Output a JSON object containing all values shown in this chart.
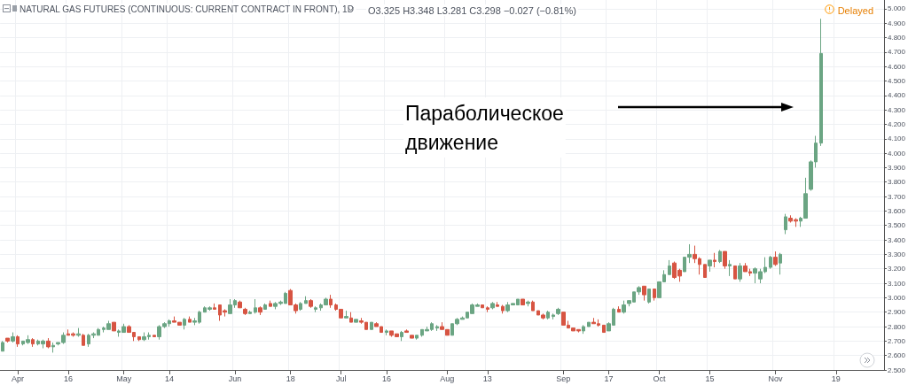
{
  "chart_data": {
    "type": "candlestick",
    "title": "NATURAL GAS FUTURES (CONTINUOUS: CURRENT CONTRACT IN FRONT), 1D",
    "annotations": [
      "O3.325 H3.348 L3.281 C3.298 −0.027 (−0.81%)",
      "Delayed",
      "Параболическое движение"
    ],
    "categories": [
      null,
      null,
      null,
      "Apr",
      null,
      null,
      null,
      null,
      null,
      null,
      null,
      null,
      null,
      "16",
      null,
      null,
      null,
      null,
      null,
      null,
      null,
      null,
      null,
      null,
      "May",
      null,
      null,
      null,
      null,
      null,
      null,
      null,
      null,
      "14",
      null,
      null,
      null,
      null,
      null,
      null,
      null,
      null,
      null,
      null,
      null,
      null,
      "Jun",
      null,
      null,
      null,
      null,
      null,
      null,
      null,
      null,
      null,
      null,
      "18",
      null,
      null,
      null,
      null,
      null,
      null,
      null,
      null,
      null,
      "Jul",
      null,
      null,
      null,
      null,
      null,
      null,
      null,
      null,
      "16",
      null,
      null,
      null,
      null,
      null,
      null,
      null,
      null,
      null,
      null,
      null,
      "Aug",
      null,
      null,
      null,
      null,
      null,
      null,
      null,
      "13",
      null,
      null,
      null,
      null,
      null,
      null,
      null,
      null,
      null,
      null,
      null,
      null,
      null,
      null,
      "Sep",
      null,
      null,
      null,
      null,
      null,
      null,
      null,
      null,
      "17",
      null,
      null,
      null,
      null,
      null,
      null,
      null,
      null,
      null,
      "Oct",
      null,
      null,
      null,
      null,
      null,
      null,
      null,
      null,
      null,
      "15",
      null,
      null,
      null,
      null,
      null,
      null,
      null,
      null,
      null,
      null,
      null,
      null,
      "Nov",
      null,
      null,
      null,
      null,
      null,
      null,
      null,
      null,
      null,
      null,
      null,
      "19",
      null,
      null,
      null,
      null,
      null,
      null,
      null,
      null,
      null
    ],
    "ohlc": [
      [
        2.63,
        2.7,
        2.63,
        2.69
      ],
      [
        2.72,
        2.72,
        2.69,
        2.7
      ],
      [
        2.7,
        2.76,
        2.69,
        2.73
      ],
      [
        2.73,
        2.74,
        2.66,
        2.68
      ],
      [
        2.68,
        2.7,
        2.67,
        2.7
      ],
      [
        2.69,
        2.74,
        2.68,
        2.71
      ],
      [
        2.71,
        2.72,
        2.66,
        2.68
      ],
      [
        2.68,
        2.71,
        2.67,
        2.7
      ],
      [
        2.68,
        2.71,
        2.65,
        2.7
      ],
      [
        2.7,
        2.72,
        2.65,
        2.66
      ],
      [
        2.66,
        2.69,
        2.62,
        2.67
      ],
      [
        2.68,
        2.69,
        2.67,
        2.69
      ],
      [
        2.69,
        2.76,
        2.68,
        2.74
      ],
      [
        2.75,
        2.78,
        2.74,
        2.74
      ],
      [
        2.75,
        2.76,
        2.73,
        2.74
      ],
      [
        2.74,
        2.79,
        2.73,
        2.75
      ],
      [
        2.74,
        2.75,
        2.67,
        2.67
      ],
      [
        2.68,
        2.75,
        2.66,
        2.74
      ],
      [
        2.74,
        2.76,
        2.72,
        2.75
      ],
      [
        2.74,
        2.79,
        2.74,
        2.78
      ],
      [
        2.78,
        2.8,
        2.76,
        2.79
      ],
      [
        2.78,
        2.84,
        2.78,
        2.82
      ],
      [
        2.83,
        2.83,
        2.77,
        2.77
      ],
      [
        2.76,
        2.78,
        2.73,
        2.77
      ],
      [
        2.76,
        2.82,
        2.76,
        2.8
      ],
      [
        2.8,
        2.81,
        2.76,
        2.76
      ],
      [
        2.76,
        2.76,
        2.7,
        2.73
      ],
      [
        2.73,
        2.73,
        2.7,
        2.71
      ],
      [
        2.71,
        2.76,
        2.7,
        2.73
      ],
      [
        2.73,
        2.76,
        2.71,
        2.74
      ],
      [
        2.74,
        2.74,
        2.73,
        2.73
      ],
      [
        2.73,
        2.81,
        2.71,
        2.8
      ],
      [
        2.8,
        2.83,
        2.79,
        2.82
      ],
      [
        2.82,
        2.85,
        2.8,
        2.84
      ],
      [
        2.84,
        2.87,
        2.83,
        2.83
      ],
      [
        2.83,
        2.83,
        2.81,
        2.81
      ],
      [
        2.81,
        2.86,
        2.78,
        2.85
      ],
      [
        2.85,
        2.87,
        2.83,
        2.83
      ],
      [
        2.83,
        2.86,
        2.81,
        2.84
      ],
      [
        2.83,
        2.91,
        2.82,
        2.9
      ],
      [
        2.9,
        2.94,
        2.9,
        2.93
      ],
      [
        2.92,
        2.94,
        2.91,
        2.93
      ],
      [
        2.93,
        2.96,
        2.92,
        2.92
      ],
      [
        2.95,
        2.95,
        2.84,
        2.88
      ],
      [
        2.91,
        2.92,
        2.87,
        2.9
      ],
      [
        2.89,
        2.99,
        2.89,
        2.95
      ],
      [
        2.95,
        2.99,
        2.93,
        2.98
      ],
      [
        2.97,
        2.98,
        2.93,
        2.93
      ],
      [
        2.92,
        2.93,
        2.88,
        2.89
      ],
      [
        2.89,
        2.91,
        2.89,
        2.9
      ],
      [
        2.9,
        2.99,
        2.89,
        2.93
      ],
      [
        2.93,
        2.94,
        2.88,
        2.9
      ],
      [
        2.92,
        2.96,
        2.92,
        2.95
      ],
      [
        2.96,
        2.98,
        2.94,
        2.94
      ],
      [
        2.94,
        2.97,
        2.92,
        2.96
      ],
      [
        2.96,
        2.98,
        2.95,
        2.97
      ],
      [
        2.96,
        3.04,
        2.96,
        3.03
      ],
      [
        3.05,
        3.06,
        2.95,
        2.95
      ],
      [
        2.95,
        2.96,
        2.89,
        2.91
      ],
      [
        2.92,
        2.97,
        2.91,
        2.96
      ],
      [
        2.96,
        3.01,
        2.96,
        2.98
      ],
      [
        2.98,
        2.99,
        2.93,
        2.94
      ],
      [
        2.92,
        2.94,
        2.9,
        2.93
      ],
      [
        2.93,
        2.96,
        2.91,
        2.95
      ],
      [
        2.95,
        3.0,
        2.95,
        2.99
      ],
      [
        2.99,
        3.02,
        2.93,
        2.95
      ],
      [
        2.95,
        2.96,
        2.91,
        2.92
      ],
      [
        2.92,
        2.92,
        2.86,
        2.86
      ],
      [
        2.86,
        2.91,
        2.86,
        2.87
      ],
      [
        2.86,
        2.9,
        2.83,
        2.83
      ],
      [
        2.83,
        2.85,
        2.83,
        2.85
      ],
      [
        2.84,
        2.86,
        2.82,
        2.83
      ],
      [
        2.83,
        2.83,
        2.78,
        2.78
      ],
      [
        2.78,
        2.83,
        2.78,
        2.83
      ],
      [
        2.82,
        2.83,
        2.8,
        2.8
      ],
      [
        2.8,
        2.8,
        2.76,
        2.76
      ],
      [
        2.76,
        2.78,
        2.74,
        2.77
      ],
      [
        2.77,
        2.77,
        2.73,
        2.74
      ],
      [
        2.75,
        2.75,
        2.73,
        2.73
      ],
      [
        2.73,
        2.77,
        2.7,
        2.76
      ],
      [
        2.77,
        2.78,
        2.76,
        2.76
      ],
      [
        2.74,
        2.74,
        2.72,
        2.72
      ],
      [
        2.72,
        2.74,
        2.71,
        2.74
      ],
      [
        2.74,
        2.78,
        2.73,
        2.78
      ],
      [
        2.77,
        2.8,
        2.77,
        2.78
      ],
      [
        2.78,
        2.83,
        2.77,
        2.82
      ],
      [
        2.79,
        2.81,
        2.77,
        2.8
      ],
      [
        2.8,
        2.83,
        2.78,
        2.78
      ],
      [
        2.78,
        2.78,
        2.74,
        2.74
      ],
      [
        2.74,
        2.82,
        2.74,
        2.82
      ],
      [
        2.82,
        2.86,
        2.81,
        2.85
      ],
      [
        2.85,
        2.87,
        2.85,
        2.86
      ],
      [
        2.86,
        2.9,
        2.86,
        2.9
      ],
      [
        2.89,
        2.96,
        2.89,
        2.95
      ],
      [
        2.94,
        2.96,
        2.94,
        2.95
      ],
      [
        2.95,
        2.95,
        2.93,
        2.93
      ],
      [
        2.93,
        2.94,
        2.9,
        2.92
      ],
      [
        2.93,
        2.97,
        2.92,
        2.96
      ],
      [
        2.95,
        2.97,
        2.94,
        2.94
      ],
      [
        2.94,
        2.95,
        2.89,
        2.91
      ],
      [
        2.91,
        2.97,
        2.9,
        2.95
      ],
      [
        2.95,
        2.96,
        2.95,
        2.96
      ],
      [
        2.95,
        2.99,
        2.95,
        2.99
      ],
      [
        2.99,
        2.99,
        2.95,
        2.95
      ],
      [
        2.96,
        2.98,
        2.94,
        2.97
      ],
      [
        2.97,
        2.98,
        2.91,
        2.91
      ],
      [
        2.91,
        2.91,
        2.88,
        2.88
      ],
      [
        2.88,
        2.89,
        2.85,
        2.86
      ],
      [
        2.86,
        2.91,
        2.85,
        2.9
      ],
      [
        2.87,
        2.89,
        2.85,
        2.88
      ],
      [
        2.89,
        2.93,
        2.88,
        2.92
      ],
      [
        2.9,
        2.9,
        2.81,
        2.81
      ],
      [
        2.81,
        2.84,
        2.79,
        2.79
      ],
      [
        2.79,
        2.79,
        2.77,
        2.77
      ],
      [
        2.78,
        2.78,
        2.76,
        2.77
      ],
      [
        2.77,
        2.81,
        2.75,
        2.8
      ],
      [
        2.8,
        2.83,
        2.8,
        2.83
      ],
      [
        2.83,
        2.86,
        2.82,
        2.82
      ],
      [
        2.82,
        2.85,
        2.8,
        2.81
      ],
      [
        2.81,
        2.81,
        2.76,
        2.76
      ],
      [
        2.77,
        2.83,
        2.77,
        2.82
      ],
      [
        2.81,
        2.93,
        2.81,
        2.92
      ],
      [
        2.92,
        2.94,
        2.9,
        2.9
      ],
      [
        2.9,
        2.98,
        2.89,
        2.95
      ],
      [
        2.96,
        2.98,
        2.94,
        2.98
      ],
      [
        2.97,
        3.04,
        2.97,
        3.04
      ],
      [
        3.04,
        3.08,
        3.02,
        3.07
      ],
      [
        3.08,
        3.08,
        2.98,
        3.02
      ],
      [
        2.97,
        3.06,
        2.96,
        3.06
      ],
      [
        3.06,
        3.06,
        2.98,
        3.0
      ],
      [
        3.0,
        3.11,
        3.0,
        3.11
      ],
      [
        3.11,
        3.19,
        3.11,
        3.16
      ],
      [
        3.16,
        3.26,
        3.16,
        3.22
      ],
      [
        3.24,
        3.25,
        3.13,
        3.14
      ],
      [
        3.19,
        3.2,
        3.11,
        3.15
      ],
      [
        3.18,
        3.28,
        3.18,
        3.28
      ],
      [
        3.28,
        3.37,
        3.24,
        3.3
      ],
      [
        3.3,
        3.36,
        3.24,
        3.27
      ],
      [
        3.27,
        3.28,
        3.16,
        3.23
      ],
      [
        3.23,
        3.23,
        3.14,
        3.14
      ],
      [
        3.22,
        3.26,
        3.18,
        3.26
      ],
      [
        3.26,
        3.31,
        3.21,
        3.25
      ],
      [
        3.25,
        3.33,
        3.24,
        3.32
      ],
      [
        3.32,
        3.32,
        3.2,
        3.22
      ],
      [
        3.22,
        3.26,
        3.15,
        3.23
      ],
      [
        3.22,
        3.22,
        3.13,
        3.13
      ],
      [
        3.13,
        3.24,
        3.11,
        3.22
      ],
      [
        3.22,
        3.24,
        3.18,
        3.18
      ],
      [
        3.18,
        3.2,
        3.15,
        3.17
      ],
      [
        3.17,
        3.21,
        3.1,
        3.2
      ],
      [
        3.13,
        3.2,
        3.1,
        3.18
      ],
      [
        3.18,
        3.28,
        3.17,
        3.21
      ],
      [
        3.21,
        3.29,
        3.2,
        3.28
      ],
      [
        3.28,
        3.32,
        3.22,
        3.23
      ],
      [
        3.24,
        3.31,
        3.16,
        3.3
      ],
      [
        3.47,
        3.58,
        3.44,
        3.56
      ],
      [
        3.55,
        3.57,
        3.52,
        3.53
      ],
      [
        3.54,
        3.55,
        3.49,
        3.53
      ],
      [
        3.53,
        3.56,
        3.49,
        3.55
      ],
      [
        3.55,
        3.83,
        3.55,
        3.72
      ],
      [
        3.75,
        3.95,
        3.74,
        3.94
      ],
      [
        3.94,
        4.12,
        3.9,
        4.07
      ],
      [
        4.07,
        4.93,
        4.05,
        4.69
      ],
      null,
      null,
      null,
      null,
      null,
      null,
      null,
      null,
      null,
      null,
      null,
      null
    ],
    "colors": [
      "#6ba583",
      "#d75442",
      "#6ba583",
      "#d75442",
      "#6ba583",
      "#6ba583",
      "#d75442",
      "#6ba583",
      "#6ba583",
      "#d75442",
      "#6ba583",
      "#6ba583",
      "#6ba583",
      "#d75442",
      "#d75442",
      "#6ba583",
      "#d75442",
      "#6ba583",
      "#6ba583",
      "#6ba583",
      "#6ba583",
      "#6ba583",
      "#d75442",
      "#6ba583",
      "#6ba583",
      "#d75442",
      "#d75442",
      "#d75442",
      "#6ba583",
      "#6ba583",
      "#d75442",
      "#6ba583",
      "#6ba583",
      "#6ba583",
      "#d75442",
      "#d75442",
      "#6ba583",
      "#d75442",
      "#6ba583",
      "#6ba583",
      "#6ba583",
      "#6ba583",
      "#d75442",
      "#d75442",
      "#d75442",
      "#6ba583",
      "#6ba583",
      "#d75442",
      "#d75442",
      "#6ba583",
      "#6ba583",
      "#d75442",
      "#6ba583",
      "#d75442",
      "#6ba583",
      "#6ba583",
      "#6ba583",
      "#d75442",
      "#d75442",
      "#6ba583",
      "#6ba583",
      "#d75442",
      "#6ba583",
      "#6ba583",
      "#6ba583",
      "#d75442",
      "#d75442",
      "#d75442",
      "#6ba583",
      "#d75442",
      "#6ba583",
      "#d75442",
      "#d75442",
      "#6ba583",
      "#d75442",
      "#d75442",
      "#6ba583",
      "#d75442",
      "#d75442",
      "#6ba583",
      "#d75442",
      "#d75442",
      "#6ba583",
      "#6ba583",
      "#6ba583",
      "#6ba583",
      "#6ba583",
      "#d75442",
      "#d75442",
      "#6ba583",
      "#6ba583",
      "#6ba583",
      "#6ba583",
      "#6ba583",
      "#6ba583",
      "#d75442",
      "#d75442",
      "#6ba583",
      "#d75442",
      "#d75442",
      "#6ba583",
      "#6ba583",
      "#6ba583",
      "#d75442",
      "#6ba583",
      "#d75442",
      "#d75442",
      "#d75442",
      "#6ba583",
      "#6ba583",
      "#6ba583",
      "#d75442",
      "#d75442",
      "#d75442",
      "#d75442",
      "#6ba583",
      "#6ba583",
      "#d75442",
      "#d75442",
      "#d75442",
      "#6ba583",
      "#6ba583",
      "#d75442",
      "#6ba583",
      "#6ba583",
      "#6ba583",
      "#6ba583",
      "#d75442",
      "#6ba583",
      "#d75442",
      "#6ba583",
      "#6ba583",
      "#6ba583",
      "#d75442",
      "#d75442",
      "#6ba583",
      "#6ba583",
      "#d75442",
      "#d75442",
      "#d75442",
      "#6ba583",
      "#d75442",
      "#6ba583",
      "#d75442",
      "#6ba583",
      "#d75442",
      "#6ba583",
      "#d75442",
      "#d75442",
      "#6ba583",
      "#6ba583",
      "#6ba583",
      "#6ba583",
      "#d75442",
      "#6ba583",
      "#6ba583",
      "#d75442",
      "#d75442",
      "#6ba583",
      "#6ba583",
      "#6ba583",
      "#6ba583",
      "#6ba583",
      null,
      null,
      null,
      null,
      null,
      null,
      null,
      null,
      null,
      null,
      null,
      null
    ],
    "ylim": [
      2.5,
      5.06
    ],
    "yticks": [
      {
        "value": 2.5,
        "label": "2.500"
      },
      {
        "value": 2.6,
        "label": "2.600"
      },
      {
        "value": 2.7,
        "label": "2.700"
      },
      {
        "value": 2.8,
        "label": "2.800"
      },
      {
        "value": 2.9,
        "label": "2.900"
      },
      {
        "value": 3.0,
        "label": "3.000"
      },
      {
        "value": 3.1,
        "label": "3.100"
      },
      {
        "value": 3.2,
        "label": "3.200"
      },
      {
        "value": 3.3,
        "label": "3.300"
      },
      {
        "value": 3.4,
        "label": "3.400"
      },
      {
        "value": 3.5,
        "label": "3.500"
      },
      {
        "value": 3.6,
        "label": "3.600"
      },
      {
        "value": 3.7,
        "label": "3.700"
      },
      {
        "value": 3.8,
        "label": "3.800"
      },
      {
        "value": 3.9,
        "label": "3.900"
      },
      {
        "value": 4.0,
        "label": "4.000"
      },
      {
        "value": 4.1,
        "label": "4.100"
      },
      {
        "value": 4.2,
        "label": "4.200"
      },
      {
        "value": 4.3,
        "label": "4.300"
      },
      {
        "value": 4.4,
        "label": "4.400"
      },
      {
        "value": 4.5,
        "label": "4.500"
      },
      {
        "value": 4.6,
        "label": "4.600"
      },
      {
        "value": 4.7,
        "label": "4.700"
      },
      {
        "value": 4.8,
        "label": "4.800"
      },
      {
        "value": 4.9,
        "label": "4.900"
      },
      {
        "value": 5.0,
        "label": "5.000"
      }
    ],
    "grid": true
  }
}
